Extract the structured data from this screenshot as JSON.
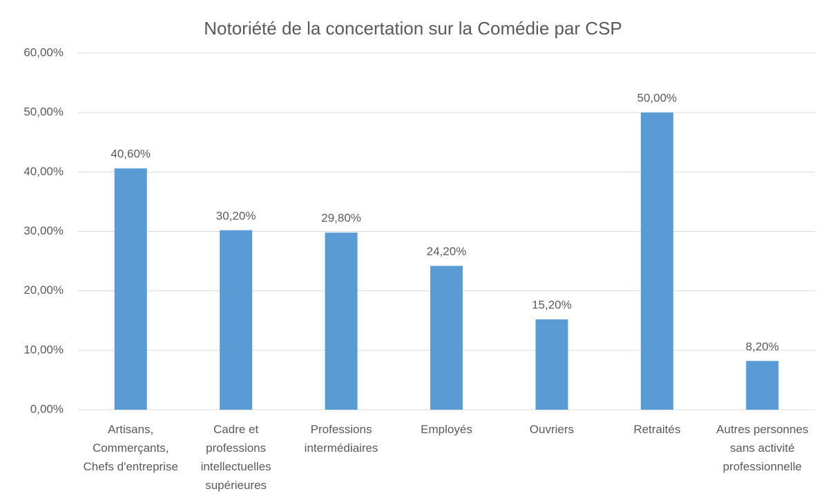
{
  "chart_data": {
    "type": "bar",
    "title": "Notoriété de la concertation sur la Comédie par CSP",
    "categories": [
      "Artisans, Commerçants, Chefs d'entreprise",
      "Cadre et professions intellectuelles supérieures",
      "Professions intermédiaires",
      "Employés",
      "Ouvriers",
      "Retraités",
      "Autres personnes sans activité professionnelle"
    ],
    "values": [
      40.6,
      30.2,
      29.8,
      24.2,
      15.2,
      50,
      8.2
    ],
    "value_labels": [
      "40,60%",
      "30,20%",
      "29,80%",
      "24,20%",
      "15,20%",
      "50,00%",
      "8,20%"
    ],
    "color": "#5b9bd5",
    "ylim": [
      0,
      60
    ],
    "yticks": [
      {
        "value": 0,
        "label": "0,00%"
      },
      {
        "value": 10,
        "label": "10,00%"
      },
      {
        "value": 20,
        "label": "20,00%"
      },
      {
        "value": 30,
        "label": "30,00%"
      },
      {
        "value": 40,
        "label": "40,00%"
      },
      {
        "value": 50,
        "label": "50,00%"
      },
      {
        "value": 60,
        "label": "60,00%"
      }
    ],
    "grid": true
  }
}
